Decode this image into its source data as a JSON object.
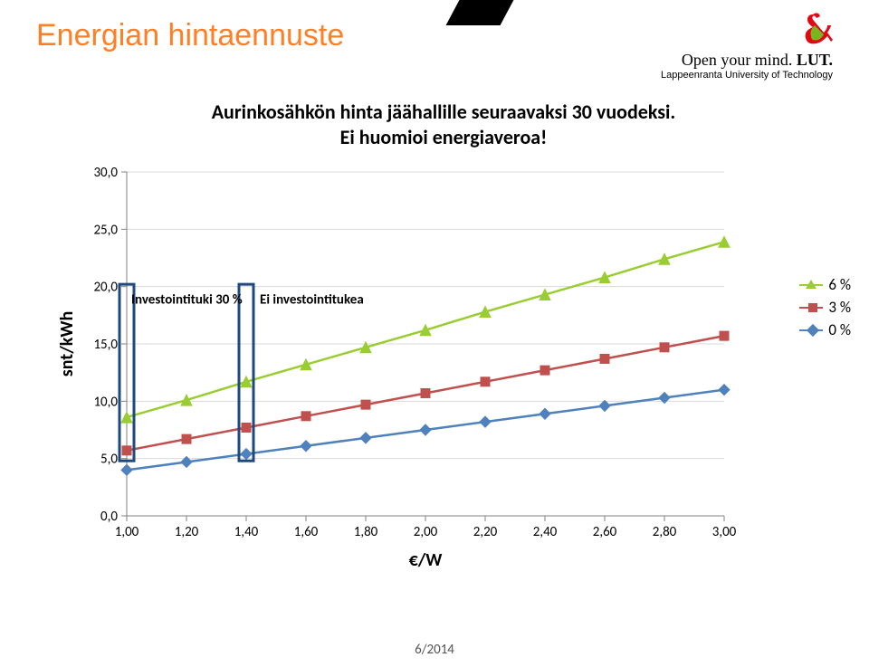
{
  "page_title": "Energian hintaennuste",
  "brand": {
    "line1_plain": "Open your mind. ",
    "line1_bold": "LUT.",
    "line2": "Lappeenranta University of Technology"
  },
  "chart": {
    "type": "line",
    "title": "Aurinkosähkön hinta jäähallille seuraavaksi 30 vuodeksi.\nEi huomioi energiaveroa!",
    "ylabel": "snt/kWh",
    "xlabel": "€/W",
    "label_fontsize": 20,
    "tick_fontsize": 15,
    "x_ticks": [
      "1,00",
      "1,20",
      "1,40",
      "1,60",
      "1,80",
      "2,00",
      "2,20",
      "2,40",
      "2,60",
      "2,80",
      "3,00"
    ],
    "x_values": [
      1.0,
      1.2,
      1.4,
      1.6,
      1.8,
      2.0,
      2.2,
      2.4,
      2.6,
      2.8,
      3.0
    ],
    "y_ticks": [
      "0,0",
      "5,0",
      "10,0",
      "15,0",
      "20,0",
      "25,0",
      "30,0"
    ],
    "y_values": [
      0,
      5,
      10,
      15,
      20,
      25,
      30
    ],
    "grid_color": "#d9d9d9",
    "axis_color": "#808080",
    "background_color": "#ffffff",
    "series": [
      {
        "name": "6 %",
        "color": "#9acd32",
        "marker": "triangle",
        "values": [
          8.6,
          10.1,
          11.7,
          13.2,
          14.7,
          16.2,
          17.8,
          19.3,
          20.8,
          22.4,
          23.9
        ]
      },
      {
        "name": "3 %",
        "color": "#c0504d",
        "marker": "square",
        "values": [
          5.7,
          6.7,
          7.7,
          8.7,
          9.7,
          10.7,
          11.7,
          12.7,
          13.7,
          14.7,
          15.7
        ]
      },
      {
        "name": "0 %",
        "color": "#4f81bd",
        "marker": "diamond",
        "values": [
          4.0,
          4.7,
          5.4,
          6.1,
          6.8,
          7.5,
          8.2,
          8.9,
          9.6,
          10.3,
          11.0
        ]
      }
    ],
    "annotations": [
      {
        "text": "Investointituki 30 %",
        "x": 1.0,
        "label_x_offset": -5
      },
      {
        "text": "Ei investointitukea",
        "x": 1.4,
        "label_x_offset": 110
      }
    ],
    "annotation_box_color": "#1f497d",
    "annotation_box_width": 3,
    "annotation_fontsize": 15
  },
  "footer": "6/2014"
}
